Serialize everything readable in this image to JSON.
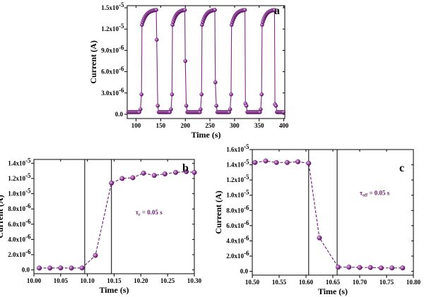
{
  "colors": {
    "series": "#7a2a82",
    "marker_light": "#d7a8dc",
    "marker_dark": "#5c1463",
    "axis": "#000000"
  },
  "chart_data": [
    {
      "panel": "a",
      "type": "scatter",
      "xlabel": "Time (s)",
      "ylabel": "Current (A)",
      "xlim": [
        82,
        402
      ],
      "ylim": [
        -6e-07,
        1.53e-05
      ],
      "xticks": [
        100,
        150,
        200,
        250,
        300,
        350,
        400
      ],
      "yticks": [
        0,
        3e-06,
        6e-06,
        9e-06,
        1.2e-05,
        1.5e-05
      ],
      "ytick_labels": [
        "0.0",
        "3.0x10",
        "6.0x10",
        "9.0x10",
        "1.2x10",
        "1.5x10"
      ],
      "ytick_exps": [
        "",
        "-6",
        "-6",
        "-6",
        "-5",
        "-5"
      ],
      "on_start": [
        112,
        174,
        234,
        294,
        356
      ],
      "off_start": [
        142,
        200,
        261,
        322,
        382
      ],
      "off_level": 3e-07,
      "on_start_level": 1.26e-05,
      "on_end_level": 1.47e-05,
      "step": 1.5
    },
    {
      "panel": "b",
      "type": "line",
      "xlabel": "Time (s)",
      "ylabel": "Current (A)",
      "xlim": [
        10.0,
        10.3
      ],
      "ylim": [
        -5e-07,
        1.45e-05
      ],
      "xticks": [
        10.0,
        10.05,
        10.1,
        10.15,
        10.2,
        10.25,
        10.3
      ],
      "xtick_labels": [
        "10.00",
        "10.05",
        "10.10",
        "10.15",
        "10.20",
        "10.25",
        "10.30"
      ],
      "yticks": [
        0,
        2e-06,
        4e-06,
        6e-06,
        8e-06,
        1e-05,
        1.2e-05,
        1.4e-05
      ],
      "ytick_labels": [
        "0.0",
        "2.0x10",
        "4.0x10",
        "6.0x10",
        "8.0x10",
        "1.0x10",
        "1.2x10",
        "1.4x10"
      ],
      "ytick_exps": [
        "",
        "-6",
        "-6",
        "-6",
        "-6",
        "-5",
        "-5",
        "-5"
      ],
      "x": [
        10.01,
        10.03,
        10.05,
        10.07,
        10.09,
        10.115,
        10.145,
        10.165,
        10.185,
        10.205,
        10.225,
        10.245,
        10.265,
        10.285,
        10.3
      ],
      "y": [
        2.5e-07,
        2.5e-07,
        2.6e-07,
        2.5e-07,
        2.6e-07,
        1.9e-06,
        1.14e-05,
        1.2e-05,
        1.21e-05,
        1.27e-05,
        1.24e-05,
        1.26e-05,
        1.28e-05,
        1.29e-05,
        1.28e-05
      ],
      "vlines": [
        10.095,
        10.145
      ],
      "annotation": "τ = 0.05 s",
      "annotation_sub": "r",
      "annotation_pos": [
        10.19,
        7.3e-06
      ]
    },
    {
      "panel": "c",
      "type": "line",
      "xlabel": "Time (s)",
      "ylabel": "Current (A)",
      "xlim": [
        10.5,
        10.8
      ],
      "ylim": [
        -5e-07,
        1.6e-05
      ],
      "xticks": [
        10.5,
        10.55,
        10.6,
        10.65,
        10.7,
        10.75,
        10.8
      ],
      "xtick_labels": [
        "10.50",
        "10.55",
        "10.60",
        "10.65",
        "10.70",
        "10.75",
        "10.80"
      ],
      "yticks": [
        0,
        2e-06,
        4e-06,
        6e-06,
        8e-06,
        1e-05,
        1.2e-05,
        1.4e-05,
        1.6e-05
      ],
      "ytick_labels": [
        "0.0",
        "2.0x10",
        "4.0x10",
        "6.0x10",
        "8.0x10",
        "1.0x10",
        "1.2x10",
        "1.4x10",
        "1.6x10"
      ],
      "ytick_exps": [
        "",
        "-6",
        "-6",
        "-6",
        "-6",
        "-5",
        "-5",
        "-5",
        "-5"
      ],
      "x": [
        10.505,
        10.525,
        10.545,
        10.565,
        10.585,
        10.605,
        10.625,
        10.66,
        10.68,
        10.7,
        10.72,
        10.74,
        10.76,
        10.78
      ],
      "y": [
        1.43e-05,
        1.45e-05,
        1.43e-05,
        1.43e-05,
        1.44e-05,
        1.42e-05,
        4.4e-06,
        5.5e-07,
        5.5e-07,
        5e-07,
        5e-07,
        4.5e-07,
        4.5e-07,
        4.5e-07
      ],
      "vlines": [
        10.605,
        10.658
      ],
      "annotation": "τ = 0.05 s",
      "annotation_sub": "off",
      "annotation_pos": [
        10.7,
        1e-05
      ]
    }
  ],
  "labels": {
    "a": "a",
    "b": "b",
    "c": "c"
  }
}
